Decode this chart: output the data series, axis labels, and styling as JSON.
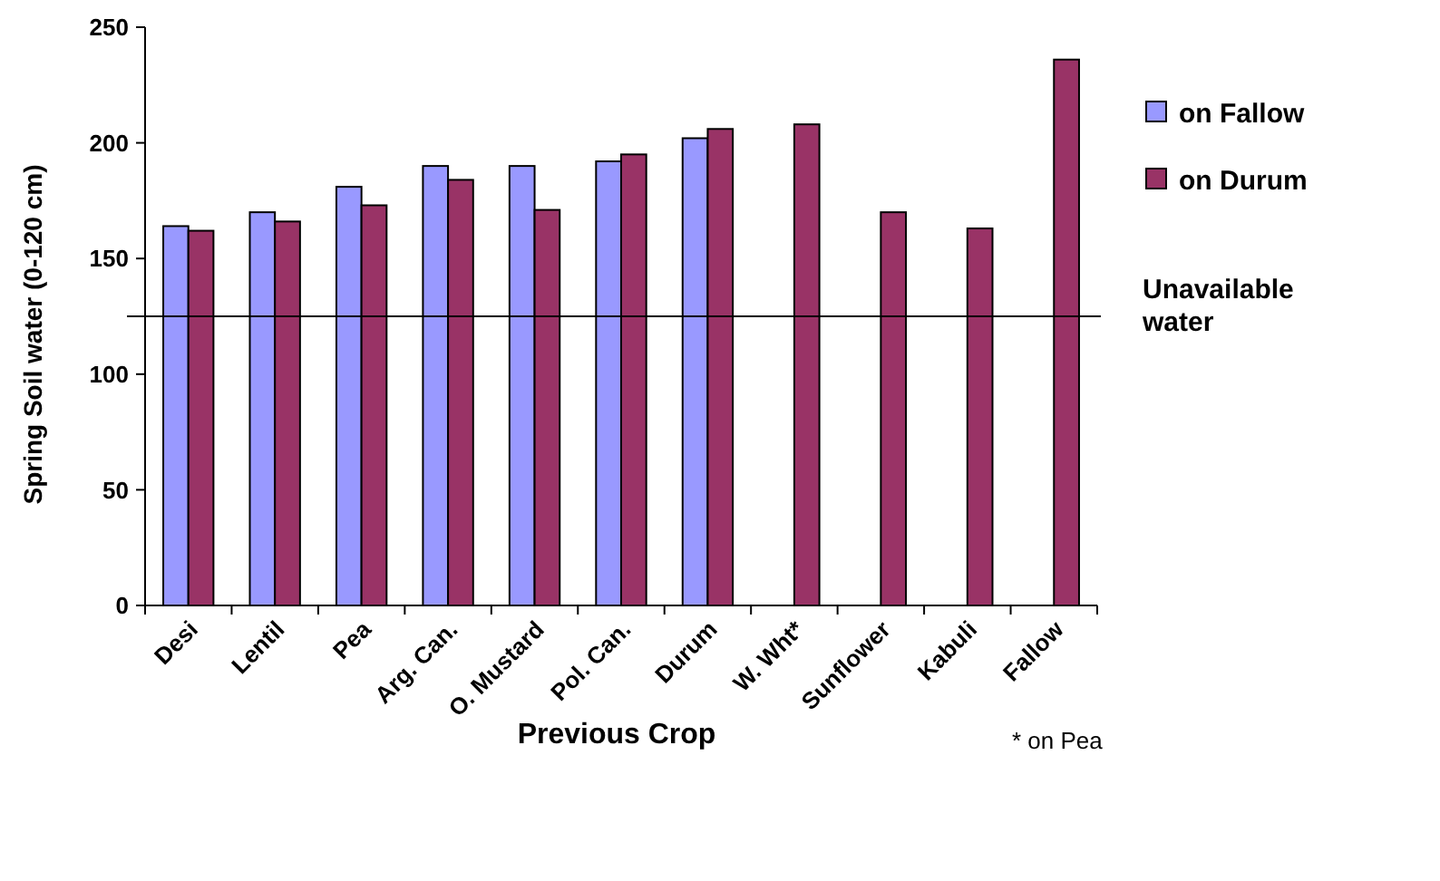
{
  "chart_data": {
    "type": "bar",
    "xlabel": "Previous Crop",
    "ylabel": "Spring Soil water (0-120 cm)",
    "categories": [
      "Desi",
      "Lentil",
      "Pea",
      "Arg. Can.",
      "O. Mustard",
      "Pol. Can.",
      "Durum",
      "W. Wht*",
      "Sunflower",
      "Kabuli",
      "Fallow"
    ],
    "series": [
      {
        "name": "on Fallow",
        "color": "#9999ff",
        "values": [
          164,
          170,
          181,
          190,
          190,
          192,
          202,
          null,
          null,
          null,
          null
        ]
      },
      {
        "name": "on Durum",
        "color": "#993366",
        "values": [
          162,
          166,
          173,
          184,
          171,
          195,
          206,
          208,
          170,
          163,
          236
        ]
      }
    ],
    "ylim": [
      0,
      250
    ],
    "yticks": [
      0,
      50,
      100,
      150,
      200,
      250
    ],
    "grid": false,
    "legend": "right",
    "ref_lines": [
      {
        "axis": "y",
        "value": 125,
        "label": "Unavailable water",
        "color": "#000000"
      }
    ],
    "annotations": [
      "* on Pea"
    ]
  }
}
